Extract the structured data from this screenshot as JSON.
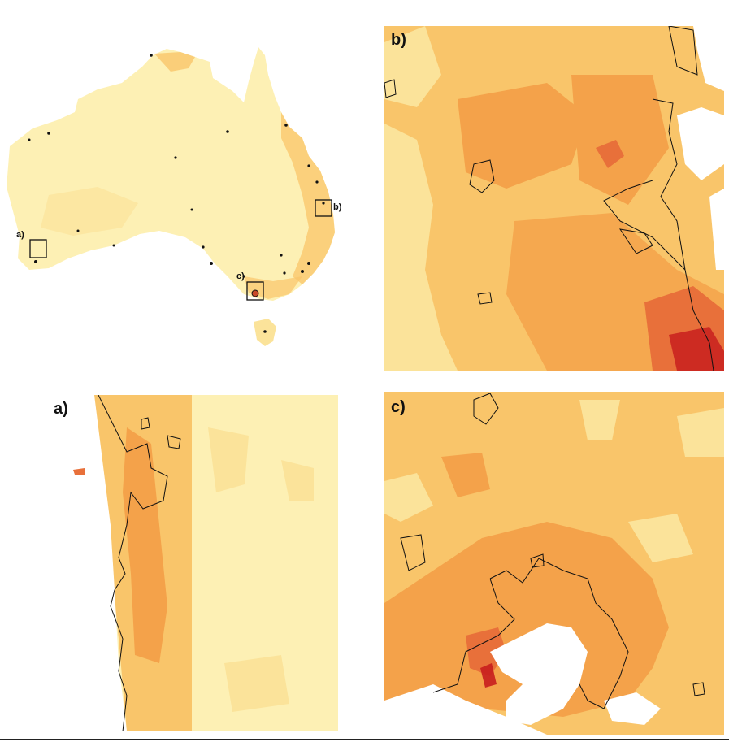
{
  "colors": {
    "pale": "#fdf0b4",
    "light": "#fbe39a",
    "mid": "#f9c56a",
    "orange": "#f4a24a",
    "deep": "#e8703a",
    "red": "#c81e1e",
    "urban_outline": "#111111",
    "water": "#ffffff"
  },
  "overview": {
    "inset_labels": [
      "a)",
      "b)",
      "c)"
    ]
  },
  "panels": {
    "a": {
      "label": "a)"
    },
    "b": {
      "label": "b)"
    },
    "c": {
      "label": "c)"
    }
  }
}
